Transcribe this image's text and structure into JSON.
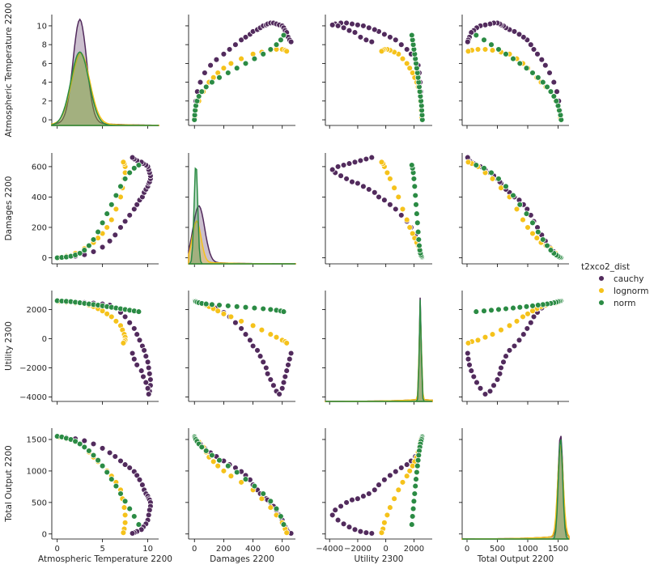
{
  "chart_data": {
    "type": "scatter",
    "variables": [
      "Atmospheric Temperature 2200",
      "Damages 2200",
      "Utility 2300",
      "Total Output 2200"
    ],
    "legend": {
      "title": "t2xco2_dist",
      "placement": "right",
      "entries": [
        {
          "name": "cauchy",
          "color": "#522b5d"
        },
        {
          "name": "lognorm",
          "color": "#f5c21b"
        },
        {
          "name": "norm",
          "color": "#2b8b44"
        }
      ]
    },
    "axes": {
      "Atmospheric Temperature 2200": {
        "range": [
          -0.6,
          11.2
        ],
        "ticks": [
          0,
          5,
          10
        ],
        "tick_labels": [
          "0",
          "5",
          "10"
        ],
        "y_ticks": [
          0,
          2,
          4,
          6,
          8,
          10
        ],
        "y_tick_labels": [
          "0",
          "2",
          "4",
          "6",
          "8",
          "10"
        ]
      },
      "Damages 2200": {
        "range": [
          -40,
          690
        ],
        "ticks": [
          0,
          200,
          400,
          600
        ],
        "tick_labels": [
          "0",
          "200",
          "400",
          "600"
        ],
        "y_ticks": [
          0,
          200,
          400,
          600
        ],
        "y_tick_labels": [
          "0",
          "200",
          "400",
          "600"
        ]
      },
      "Utility 2300": {
        "range": [
          -4300,
          3300
        ],
        "ticks": [
          -4000,
          -2000,
          0,
          2000
        ],
        "tick_labels": [
          "−4000",
          "−2000",
          "0",
          "2000"
        ],
        "y_ticks": [
          -4000,
          -2000,
          0,
          2000
        ],
        "y_tick_labels": [
          "−4000",
          "−2000",
          "0",
          "2000"
        ]
      },
      "Total Output 2200": {
        "range": [
          -80,
          1680
        ],
        "ticks": [
          0,
          500,
          1000,
          1500
        ],
        "tick_labels": [
          "0",
          "500",
          "1000",
          "1500"
        ],
        "y_ticks": [
          0,
          500,
          1000,
          1500
        ],
        "y_tick_labels": [
          "0",
          "500",
          "1000",
          "1500"
        ]
      }
    },
    "diagonal_kde": {
      "Atmospheric Temperature 2200": {
        "cauchy": {
          "peak": 2.5,
          "width": 0.75,
          "height": 1.0,
          "tail": 0.04
        },
        "lognorm": {
          "peak": 2.6,
          "width": 1.0,
          "height": 0.68,
          "tail": 0.03
        },
        "norm": {
          "peak": 2.5,
          "width": 1.0,
          "height": 0.72,
          "tail": 0.0
        }
      },
      "Damages 2200": {
        "cauchy": {
          "peak": 30,
          "width": 40,
          "height": 0.55,
          "tail": 0.02
        },
        "lognorm": {
          "peak": 15,
          "width": 30,
          "height": 0.4,
          "tail": 0.02
        },
        "norm": {
          "peak": 10,
          "width": 12,
          "height": 1.0,
          "tail": 0.0
        }
      },
      "Utility 2300": {
        "cauchy": {
          "peak": 2450,
          "width": 70,
          "height": 1.0,
          "tail": 0.02
        },
        "lognorm": {
          "peak": 2450,
          "width": 80,
          "height": 0.9,
          "tail": 0.02
        },
        "norm": {
          "peak": 2450,
          "width": 70,
          "height": 1.0,
          "tail": 0.0
        }
      },
      "Total Output 2200": {
        "cauchy": {
          "peak": 1540,
          "width": 40,
          "height": 1.0,
          "tail": 0.03
        },
        "lognorm": {
          "peak": 1540,
          "width": 45,
          "height": 0.9,
          "tail": 0.03
        },
        "norm": {
          "peak": 1540,
          "width": 35,
          "height": 1.0,
          "tail": 0.0
        }
      }
    },
    "series": [
      {
        "name": "cauchy",
        "values": {
          "Atmospheric Temperature 2200": [
            0.3,
            1.0,
            2.0,
            3.0,
            4.0,
            5.0,
            5.8,
            6.4,
            7.0,
            7.5,
            8.0,
            8.5,
            8.8,
            9.1,
            9.4,
            9.6,
            9.8,
            10.0,
            10.1,
            10.2,
            10.3,
            10.3,
            10.2,
            10.1,
            10.0,
            9.8,
            9.5,
            9.3,
            8.8,
            8.5,
            8.3
          ],
          "Damages 2200": [
            1,
            4,
            10,
            20,
            40,
            70,
            110,
            150,
            200,
            240,
            280,
            320,
            350,
            380,
            400,
            430,
            450,
            470,
            490,
            500,
            520,
            540,
            560,
            580,
            600,
            610,
            620,
            630,
            640,
            650,
            660
          ],
          "Utility 2300": [
            2580,
            2560,
            2520,
            2480,
            2440,
            2380,
            2300,
            2100,
            1800,
            1500,
            1100,
            700,
            300,
            -100,
            -500,
            -800,
            -1200,
            -1600,
            -2000,
            -2400,
            -2800,
            -3200,
            -3600,
            -3800,
            -3400,
            -3000,
            -2600,
            -2200,
            -1800,
            -1400,
            -1000
          ],
          "Total Output 2200": [
            1540,
            1530,
            1510,
            1480,
            1430,
            1360,
            1290,
            1230,
            1160,
            1100,
            1050,
            990,
            930,
            860,
            780,
            700,
            640,
            600,
            560,
            540,
            500,
            440,
            380,
            300,
            220,
            160,
            110,
            70,
            40,
            20,
            10
          ]
        }
      },
      {
        "name": "lognorm",
        "values": {
          "Atmospheric Temperature 2200": [
            0.2,
            1.0,
            2.0,
            3.0,
            3.5,
            4.0,
            4.5,
            5.0,
            5.5,
            6.0,
            6.5,
            7.0,
            7.2,
            7.4,
            7.5,
            7.5,
            7.4,
            7.3
          ],
          "Damages 2200": [
            1,
            10,
            30,
            60,
            80,
            100,
            130,
            160,
            200,
            250,
            320,
            400,
            460,
            520,
            560,
            600,
            620,
            630
          ],
          "Utility 2300": [
            2560,
            2500,
            2450,
            2380,
            2300,
            2200,
            2050,
            1900,
            1700,
            1500,
            1200,
            900,
            600,
            300,
            100,
            -100,
            -200,
            -300
          ],
          "Total Output 2200": [
            1540,
            1510,
            1460,
            1380,
            1300,
            1220,
            1150,
            1080,
            1000,
            920,
            820,
            700,
            560,
            420,
            300,
            180,
            80,
            20
          ]
        }
      },
      {
        "name": "norm",
        "values": {
          "Atmospheric Temperature 2200": [
            0.0,
            0.5,
            1.0,
            1.5,
            2.0,
            2.5,
            3.0,
            3.5,
            4.0,
            4.5,
            5.0,
            5.5,
            6.0,
            6.5,
            7.0,
            7.5,
            8.0,
            8.5,
            9.0
          ],
          "Damages 2200": [
            0,
            2,
            5,
            10,
            18,
            30,
            50,
            80,
            120,
            170,
            230,
            290,
            350,
            410,
            470,
            520,
            560,
            590,
            610
          ],
          "Utility 2300": [
            2600,
            2580,
            2560,
            2540,
            2500,
            2460,
            2420,
            2380,
            2340,
            2300,
            2250,
            2200,
            2150,
            2100,
            2050,
            2000,
            1950,
            1900,
            1850
          ],
          "Total Output 2200": [
            1550,
            1540,
            1520,
            1500,
            1470,
            1430,
            1380,
            1320,
            1250,
            1170,
            1080,
            980,
            870,
            760,
            640,
            520,
            400,
            280,
            150
          ]
        }
      }
    ]
  }
}
